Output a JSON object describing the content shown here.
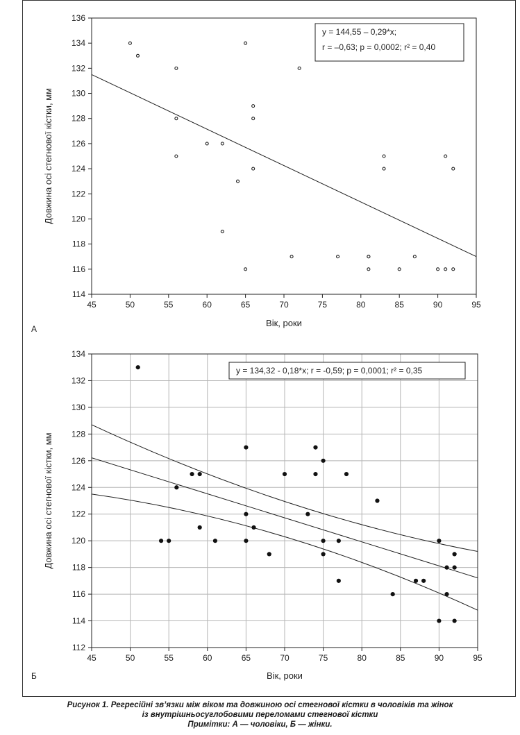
{
  "chart_data": [
    {
      "panel_label": "А",
      "type": "scatter",
      "xlabel": "Вік, роки",
      "ylabel": "Довжина осі стегнової кістки, мм",
      "xlim": [
        45,
        95
      ],
      "ylim": [
        114,
        136
      ],
      "xticks": [
        45,
        50,
        55,
        60,
        65,
        70,
        75,
        80,
        85,
        90,
        95
      ],
      "yticks": [
        114,
        116,
        118,
        120,
        122,
        124,
        126,
        128,
        130,
        132,
        134,
        136
      ],
      "grid": false,
      "marker": "open-circle",
      "annotation_lines": [
        "y = 144,55 – 0,29*x;",
        "r = –0,63; p = 0,0002; r² = 0,40"
      ],
      "annotation_position": "top-right",
      "regression": {
        "intercept": 144.55,
        "slope": -0.29
      },
      "points": [
        [
          50,
          134
        ],
        [
          51,
          133
        ],
        [
          56,
          132
        ],
        [
          56,
          128
        ],
        [
          56,
          125
        ],
        [
          60,
          126
        ],
        [
          62,
          126
        ],
        [
          62,
          119
        ],
        [
          64,
          123
        ],
        [
          65,
          134
        ],
        [
          65,
          116
        ],
        [
          66,
          129
        ],
        [
          66,
          128
        ],
        [
          66,
          124
        ],
        [
          71,
          117
        ],
        [
          72,
          132
        ],
        [
          77,
          117
        ],
        [
          81,
          117
        ],
        [
          81,
          117
        ],
        [
          81,
          116
        ],
        [
          83,
          125
        ],
        [
          83,
          124
        ],
        [
          85,
          116
        ],
        [
          87,
          117
        ],
        [
          90,
          116
        ],
        [
          91,
          125
        ],
        [
          91,
          116
        ],
        [
          92,
          124
        ],
        [
          92,
          116
        ]
      ]
    },
    {
      "panel_label": "Б",
      "type": "scatter",
      "xlabel": "Вік, роки",
      "ylabel": "Довжина осі стегнової кістки, мм",
      "xlim": [
        45,
        95
      ],
      "ylim": [
        112,
        134
      ],
      "xticks": [
        45,
        50,
        55,
        60,
        65,
        70,
        75,
        80,
        85,
        90,
        95
      ],
      "yticks": [
        112,
        114,
        116,
        118,
        120,
        122,
        124,
        126,
        128,
        130,
        132,
        134
      ],
      "grid": true,
      "marker": "filled-circle",
      "annotation_lines": [
        "y = 134,32 - 0,18*x;  r = -0,59; p = 0,0001; r² = 0,35"
      ],
      "annotation_position": "top-right",
      "regression": {
        "intercept": 134.32,
        "slope": -0.18
      },
      "confidence_band": {
        "upper": [
          [
            45,
            128.7
          ],
          [
            95,
            119.2
          ]
        ],
        "lower": [
          [
            45,
            123.5
          ],
          [
            95,
            114.8
          ]
        ]
      },
      "points": [
        [
          51,
          133
        ],
        [
          54,
          120
        ],
        [
          55,
          120
        ],
        [
          56,
          124
        ],
        [
          58,
          125
        ],
        [
          59,
          125
        ],
        [
          59,
          121
        ],
        [
          61,
          120
        ],
        [
          65,
          127
        ],
        [
          65,
          122
        ],
        [
          65,
          120
        ],
        [
          66,
          121
        ],
        [
          68,
          119
        ],
        [
          70,
          125
        ],
        [
          73,
          122
        ],
        [
          74,
          127
        ],
        [
          74,
          125
        ],
        [
          75,
          126
        ],
        [
          75,
          120
        ],
        [
          75,
          119
        ],
        [
          77,
          120
        ],
        [
          77,
          117
        ],
        [
          78,
          125
        ],
        [
          82,
          123
        ],
        [
          84,
          116
        ],
        [
          87,
          117
        ],
        [
          88,
          117
        ],
        [
          90,
          120
        ],
        [
          90,
          114
        ],
        [
          91,
          118
        ],
        [
          91,
          116
        ],
        [
          92,
          119
        ],
        [
          92,
          118
        ],
        [
          92,
          114
        ]
      ]
    }
  ],
  "caption": {
    "line1": "Рисунок 1. Регресійні зв’язки між віком та довжиною осі стегнової кістки в чоловіків та жінок",
    "line2": "із внутрішньосуглобовими переломами стегнової кістки",
    "line3": "Примітки: А — чоловіки, Б — жінки."
  }
}
